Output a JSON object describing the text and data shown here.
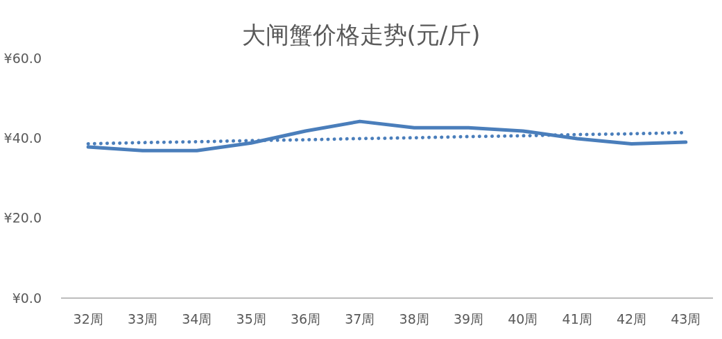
{
  "chart_data": {
    "type": "line",
    "title": "大闸蟹价格走势(元/斤)",
    "categories": [
      "32周",
      "33周",
      "34周",
      "35周",
      "36周",
      "37周",
      "38周",
      "39周",
      "40周",
      "41周",
      "42周",
      "43周"
    ],
    "series": [
      {
        "color": "#4a7ebb",
        "values": [
          37.8,
          36.9,
          36.9,
          38.8,
          41.8,
          44.2,
          42.6,
          42.6,
          41.8,
          39.9,
          38.6,
          39.0
        ],
        "line_style": "solid"
      },
      {
        "color": "#4a7ebb",
        "values": [
          38.6,
          38.9,
          39.1,
          39.4,
          39.6,
          39.9,
          40.1,
          40.4,
          40.6,
          40.9,
          41.1,
          41.4
        ],
        "line_style": "dotted"
      }
    ],
    "ylim": [
      0,
      60
    ],
    "yticks": [
      {
        "value": 0,
        "label": "¥0.0"
      },
      {
        "value": 20,
        "label": "¥20.0"
      },
      {
        "value": 40,
        "label": "¥40.0"
      },
      {
        "value": 60,
        "label": "¥60.0"
      }
    ],
    "grid": false
  }
}
